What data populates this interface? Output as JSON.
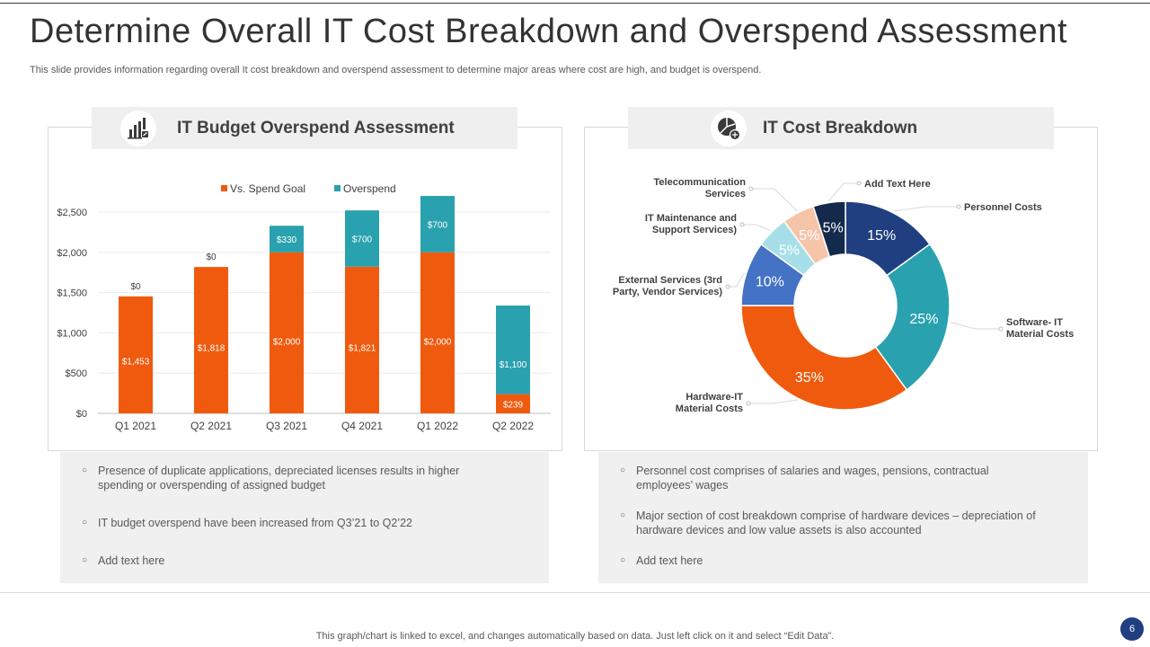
{
  "page": {
    "title": "Determine Overall IT Cost Breakdown and Overspend Assessment",
    "subtitle": "This slide provides information regarding overall It cost breakdown and overspend assessment to determine major areas where cost are high, and budget is overspend.",
    "footer": "This graph/chart is linked to excel, and changes automatically based on data. Just left click on it and select “Edit Data”.",
    "page_number": "6"
  },
  "left_panel": {
    "title": "IT Budget Overspend Assessment",
    "icon": "bar-chart-icon",
    "notes": [
      "Presence of duplicate applications, depreciated licenses results in higher spending or overspending  of assigned budget",
      "IT budget overspend  have been increased from Q3’21 to Q2’22",
      "Add text here"
    ]
  },
  "right_panel": {
    "title": "IT Cost Breakdown",
    "icon": "pie-chart-icon",
    "notes": [
      "Personnel cost comprises of salaries and wages, pensions, contractual employees’ wages",
      "Major section of cost breakdown  comprise of hardware  devices – depreciation of hardware  devices  and low value  assets is also accounted",
      "Add text here"
    ]
  },
  "colors": {
    "orange": "#f05a0e",
    "teal": "#2aa1ae",
    "navy": "#1f3f80",
    "blue": "#4472c4",
    "light_blue": "#a7dfe8",
    "peach": "#f6c4a8",
    "dark_navy": "#142a4c"
  },
  "chart_data": [
    {
      "type": "bar",
      "stacked": true,
      "title": "IT Budget Overspend Assessment",
      "categories": [
        "Q1 2021",
        "Q2 2021",
        "Q3 2021",
        "Q4 2021",
        "Q1 2022",
        "Q2 2022"
      ],
      "series": [
        {
          "name": "Vs. Spend Goal",
          "color": "#f05a0e",
          "values": [
            1453,
            1818,
            2000,
            1821,
            2000,
            239
          ],
          "labels": [
            "$1,453",
            "$1,818",
            "$2,000",
            "$1,821",
            "$2,000",
            "$239"
          ]
        },
        {
          "name": "Overspend",
          "color": "#2aa1ae",
          "values": [
            0,
            0,
            330,
            700,
            700,
            1100
          ],
          "labels": [
            "$0",
            "$0",
            "$330",
            "$700",
            "$700",
            "$1,100"
          ]
        }
      ],
      "ylim": [
        0,
        2500
      ],
      "yticks": [
        0,
        500,
        1000,
        1500,
        2000,
        2500
      ],
      "ytick_labels": [
        "$0",
        "$500",
        "$1,000",
        "$1,500",
        "$2,000",
        "$2,500"
      ],
      "grid": true,
      "legend": "top"
    },
    {
      "type": "pie",
      "donut": true,
      "title": "IT Cost Breakdown",
      "slices": [
        {
          "label": "Personnel Costs",
          "value": 15,
          "pct_label": "15%",
          "color": "#1f3f80"
        },
        {
          "label": "Software- IT Material Costs",
          "value": 25,
          "pct_label": "25%",
          "color": "#2aa1ae"
        },
        {
          "label": "Hardware-IT Material Costs",
          "value": 35,
          "pct_label": "35%",
          "color": "#f05a0e"
        },
        {
          "label": "External Services (3rd Party, Vendor Services)",
          "value": 10,
          "pct_label": "10%",
          "color": "#4472c4"
        },
        {
          "label": "IT Maintenance and Support Services)",
          "value": 5,
          "pct_label": "5%",
          "color": "#a7dfe8"
        },
        {
          "label": "Telecommunication Services",
          "value": 5,
          "pct_label": "5%",
          "color": "#f6c4a8"
        },
        {
          "label": "Add Text Here",
          "value": 5,
          "pct_label": "5%",
          "color": "#142a4c"
        }
      ],
      "legend": "callouts"
    }
  ]
}
